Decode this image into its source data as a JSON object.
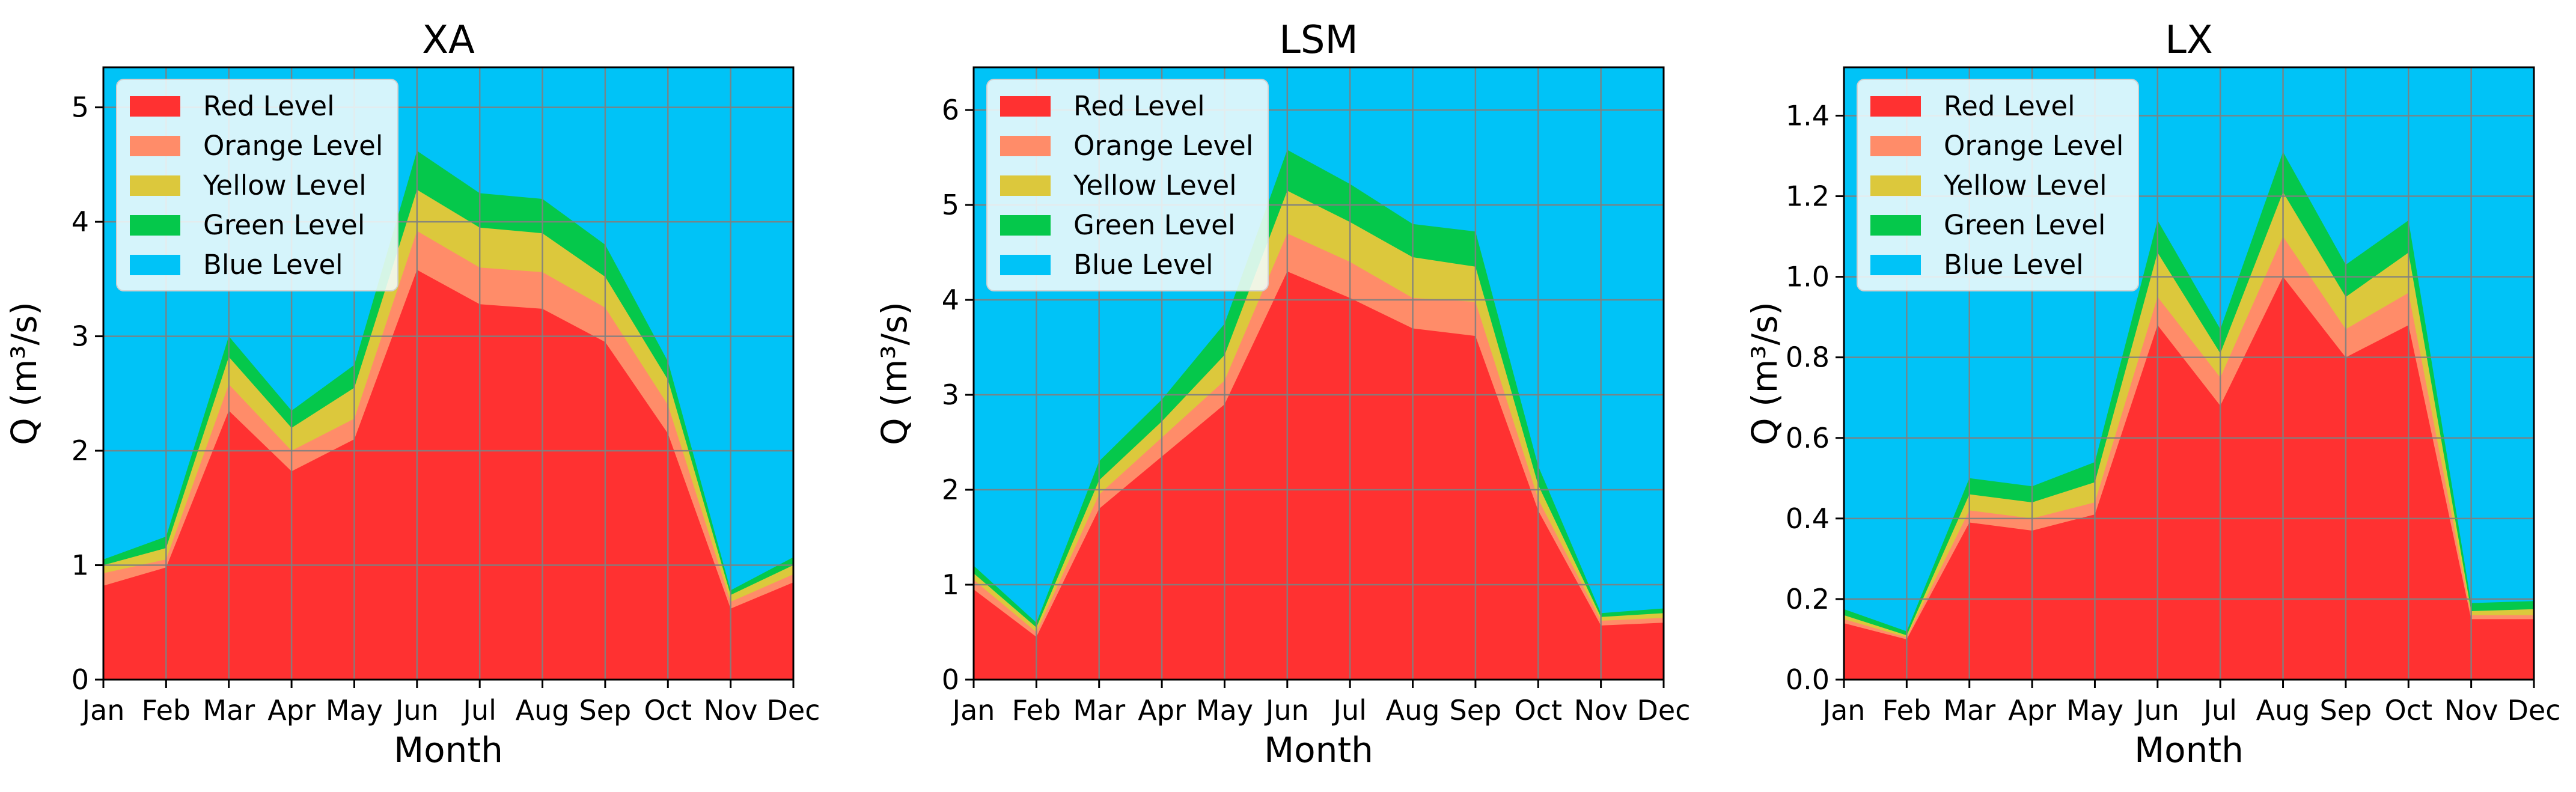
{
  "colors": {
    "red": "#ff3131",
    "orange": "#ff8c69",
    "yellow": "#dcc83c",
    "green": "#05c84b",
    "blue": "#00c3f7",
    "grid": "#808080",
    "legend_bg": "#f2fafc"
  },
  "chart_data": [
    {
      "type": "area",
      "title": "XA",
      "xlabel": "Month",
      "ylabel": "Q (m³/s)",
      "ylim": [
        0,
        5.35
      ],
      "yticks": [
        0,
        1,
        2,
        3,
        4,
        5
      ],
      "ytick_labels": [
        "0",
        "1",
        "2",
        "3",
        "4",
        "5"
      ],
      "categories": [
        "Jan",
        "Feb",
        "Mar",
        "Apr",
        "May",
        "Jun",
        "Jul",
        "Aug",
        "Sep",
        "Oct",
        "Nov",
        "Dec"
      ],
      "grid": true,
      "legend_position": "top-left",
      "series": [
        {
          "name": "Red Level",
          "color_key": "red",
          "values": [
            0.82,
            0.98,
            2.35,
            1.82,
            2.1,
            3.58,
            3.28,
            3.24,
            2.95,
            2.15,
            0.62,
            0.85
          ]
        },
        {
          "name": "Orange Level",
          "color_key": "orange",
          "values": [
            0.93,
            1.05,
            2.58,
            2.0,
            2.28,
            3.92,
            3.6,
            3.56,
            3.25,
            2.4,
            0.68,
            0.92
          ]
        },
        {
          "name": "Yellow Level",
          "color_key": "yellow",
          "values": [
            1.0,
            1.15,
            2.82,
            2.2,
            2.55,
            4.28,
            3.95,
            3.9,
            3.52,
            2.62,
            0.74,
            1.0
          ]
        },
        {
          "name": "Green Level",
          "color_key": "green",
          "values": [
            1.05,
            1.25,
            3.0,
            2.35,
            2.75,
            4.62,
            4.25,
            4.2,
            3.8,
            2.78,
            0.78,
            1.07
          ]
        },
        {
          "name": "Blue Level",
          "color_key": "blue",
          "values": [
            5.35,
            5.35,
            5.35,
            5.35,
            5.35,
            5.35,
            5.35,
            5.35,
            5.35,
            5.35,
            5.35,
            5.35
          ]
        }
      ]
    },
    {
      "type": "area",
      "title": "LSM",
      "xlabel": "Month",
      "ylabel": "Q (m³/s)",
      "ylim": [
        0,
        6.45
      ],
      "yticks": [
        0,
        1,
        2,
        3,
        4,
        5,
        6
      ],
      "ytick_labels": [
        "0",
        "1",
        "2",
        "3",
        "4",
        "5",
        "6"
      ],
      "categories": [
        "Jan",
        "Feb",
        "Mar",
        "Apr",
        "May",
        "Jun",
        "Jul",
        "Aug",
        "Sep",
        "Oct",
        "Nov",
        "Dec"
      ],
      "grid": true,
      "legend_position": "top-left",
      "series": [
        {
          "name": "Red Level",
          "color_key": "red",
          "values": [
            0.95,
            0.45,
            1.8,
            2.35,
            2.9,
            4.3,
            4.02,
            3.7,
            3.62,
            1.78,
            0.57,
            0.6
          ]
        },
        {
          "name": "Orange Level",
          "color_key": "orange",
          "values": [
            1.05,
            0.5,
            1.95,
            2.55,
            3.15,
            4.7,
            4.4,
            4.02,
            3.98,
            1.9,
            0.62,
            0.65
          ]
        },
        {
          "name": "Yellow Level",
          "color_key": "yellow",
          "values": [
            1.12,
            0.55,
            2.1,
            2.72,
            3.42,
            5.15,
            4.82,
            4.45,
            4.35,
            2.05,
            0.66,
            0.7
          ]
        },
        {
          "name": "Green Level",
          "color_key": "green",
          "values": [
            1.2,
            0.6,
            2.3,
            2.95,
            3.75,
            5.58,
            5.22,
            4.8,
            4.72,
            2.25,
            0.7,
            0.75
          ]
        },
        {
          "name": "Blue Level",
          "color_key": "blue",
          "values": [
            6.45,
            6.45,
            6.45,
            6.45,
            6.45,
            6.45,
            6.45,
            6.45,
            6.45,
            6.45,
            6.45,
            6.45
          ]
        }
      ]
    },
    {
      "type": "area",
      "title": "LX",
      "xlabel": "Month",
      "ylabel": "Q (m³/s)",
      "ylim": [
        0,
        1.52
      ],
      "yticks": [
        0,
        0.2,
        0.4,
        0.6,
        0.8,
        1.0,
        1.2,
        1.4
      ],
      "ytick_labels": [
        "0.0",
        "0.2",
        "0.4",
        "0.6",
        "0.8",
        "1.0",
        "1.2",
        "1.4"
      ],
      "categories": [
        "Jan",
        "Feb",
        "Mar",
        "Apr",
        "May",
        "Jun",
        "Jul",
        "Aug",
        "Sep",
        "Oct",
        "Nov",
        "Dec"
      ],
      "grid": true,
      "legend_position": "top-left",
      "series": [
        {
          "name": "Red Level",
          "color_key": "red",
          "values": [
            0.14,
            0.1,
            0.39,
            0.37,
            0.41,
            0.88,
            0.68,
            1.0,
            0.8,
            0.88,
            0.15,
            0.15
          ]
        },
        {
          "name": "Orange Level",
          "color_key": "orange",
          "values": [
            0.15,
            0.105,
            0.42,
            0.4,
            0.44,
            0.95,
            0.75,
            1.1,
            0.87,
            0.96,
            0.16,
            0.16
          ]
        },
        {
          "name": "Yellow Level",
          "color_key": "yellow",
          "values": [
            0.16,
            0.11,
            0.46,
            0.44,
            0.49,
            1.06,
            0.81,
            1.21,
            0.95,
            1.06,
            0.17,
            0.175
          ]
        },
        {
          "name": "Green Level",
          "color_key": "green",
          "values": [
            0.175,
            0.12,
            0.5,
            0.48,
            0.54,
            1.14,
            0.87,
            1.31,
            1.03,
            1.14,
            0.19,
            0.195
          ]
        },
        {
          "name": "Blue Level",
          "color_key": "blue",
          "values": [
            1.52,
            1.52,
            1.52,
            1.52,
            1.52,
            1.52,
            1.52,
            1.52,
            1.52,
            1.52,
            1.52,
            1.52
          ]
        }
      ]
    }
  ]
}
